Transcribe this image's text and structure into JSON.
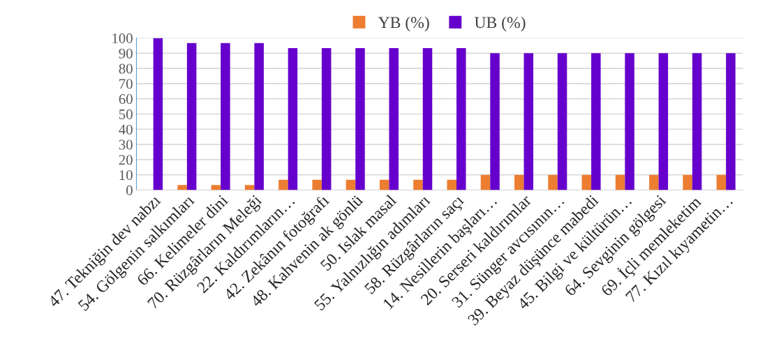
{
  "chart_data": {
    "type": "bar",
    "categories": [
      "47. Tekniğin dev nabzı",
      "54. Gölgenin salkımları",
      "66. Kelimeler dini",
      "70. Rüzgârların Meleği",
      "22. Kaldırımların…",
      "42. Zekânın fotoğrafı",
      "48. Kahvenin ak gönlü",
      "50. Islak masal",
      "55. Yalnızlığın adımları",
      "58. Rüzgârların saçı",
      "14. Nesillerin başları…",
      "20. Serseri kaldırımlar",
      "31. Sünger avcısının…",
      "39. Beyaz düşünce mabedi",
      "45. Bilgi ve kültürün…",
      "64. Sevginin gölgesi",
      "69. İçli memleketim",
      "77. Kızıl kıyametin…"
    ],
    "series": [
      {
        "name": "YB (%)",
        "color": "#ed7d31",
        "values": [
          0,
          3.3,
          3.3,
          3.3,
          6.7,
          6.7,
          6.7,
          6.7,
          6.7,
          6.7,
          10,
          10,
          10,
          10,
          10,
          10,
          10,
          10
        ]
      },
      {
        "name": "UB (%)",
        "color": "#6600cc",
        "values": [
          100,
          96.7,
          96.7,
          96.7,
          93.3,
          93.3,
          93.3,
          93.3,
          93.3,
          93.3,
          90,
          90,
          90,
          90,
          90,
          90,
          90,
          90
        ]
      }
    ],
    "ylim": [
      0,
      100
    ],
    "yticks": [
      0,
      10,
      20,
      30,
      40,
      50,
      60,
      70,
      80,
      90,
      100
    ],
    "grid": "y",
    "legend": "top"
  }
}
